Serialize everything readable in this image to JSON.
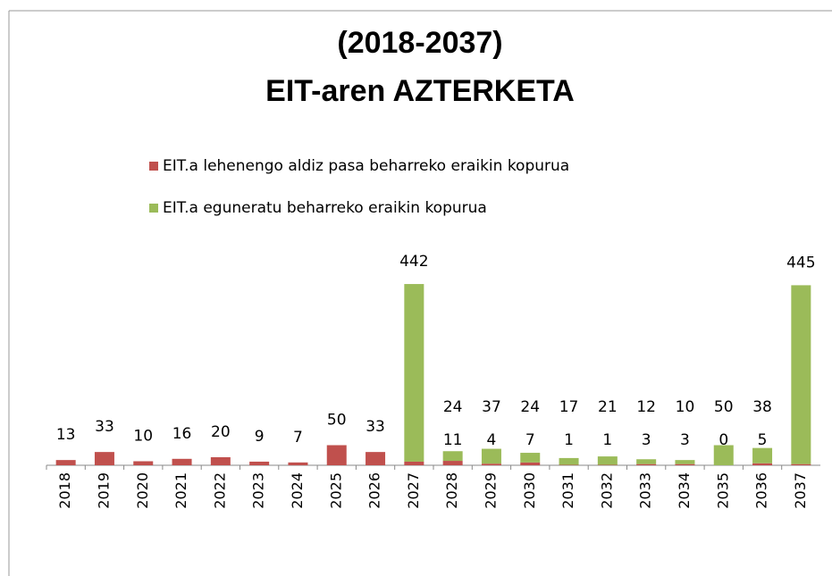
{
  "chart_data": {
    "type": "bar",
    "stacked": true,
    "title": [
      "(2018-2037)",
      "EIT-aren AZTERKETA"
    ],
    "categories": [
      "2018",
      "2019",
      "2020",
      "2021",
      "2022",
      "2023",
      "2024",
      "2025",
      "2026",
      "2027",
      "2028",
      "2029",
      "2030",
      "2031",
      "2032",
      "2033",
      "2034",
      "2035",
      "2036",
      "2037"
    ],
    "series": [
      {
        "name": "EIT.a lehenengo aldiz pasa beharreko eraikin kopurua",
        "color": "#c0504d",
        "values": [
          13,
          33,
          10,
          16,
          20,
          9,
          7,
          50,
          33,
          9,
          11,
          4,
          7,
          1,
          1,
          3,
          3,
          0,
          5,
          3
        ]
      },
      {
        "name": "EIT.a eguneratu beharreko eraikin kopurua",
        "color": "#9bbb59",
        "values": [
          null,
          null,
          null,
          null,
          null,
          null,
          null,
          null,
          null,
          442,
          24,
          37,
          24,
          17,
          21,
          12,
          10,
          50,
          38,
          445
        ]
      }
    ]
  }
}
